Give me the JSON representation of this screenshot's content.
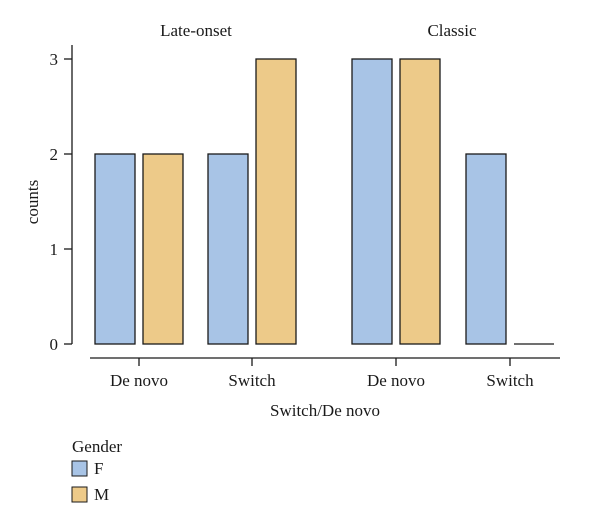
{
  "chart_data": {
    "type": "bar",
    "facets": [
      {
        "title": "Late-onset",
        "categories": [
          "De novo",
          "Switch"
        ],
        "series": [
          {
            "name": "F",
            "values": [
              2,
              2
            ]
          },
          {
            "name": "M",
            "values": [
              2,
              3
            ]
          }
        ]
      },
      {
        "title": "Classic",
        "categories": [
          "De novo",
          "Switch"
        ],
        "series": [
          {
            "name": "F",
            "values": [
              3,
              2
            ]
          },
          {
            "name": "M",
            "values": [
              3,
              0
            ]
          }
        ]
      }
    ],
    "xlabel": "Switch/De novo",
    "ylabel": "counts",
    "ylim": [
      0,
      3
    ],
    "yticks": [
      0,
      1,
      2,
      3
    ],
    "grid": false,
    "legend": {
      "title": "Gender",
      "placement": "bottom-left",
      "entries": [
        {
          "name": "F",
          "color": "#a8c4e6"
        },
        {
          "name": "M",
          "color": "#edca89"
        }
      ]
    },
    "colors": {
      "F": "#a8c4e6",
      "M": "#edca89"
    }
  }
}
